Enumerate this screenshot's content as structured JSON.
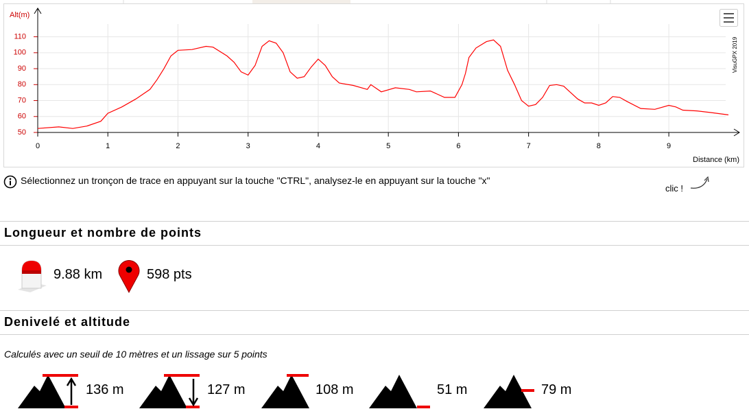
{
  "chart_data": {
    "type": "line",
    "y_label": "Alt(m)",
    "x_label": "Distance (km)",
    "credit": "VisuGPX 2019",
    "color": "#ff0000",
    "grid": true,
    "x": [
      0,
      0.3,
      0.5,
      0.7,
      0.9,
      1.0,
      1.2,
      1.4,
      1.6,
      1.7,
      1.8,
      1.9,
      2.0,
      2.2,
      2.4,
      2.5,
      2.7,
      2.8,
      2.9,
      3.0,
      3.1,
      3.2,
      3.3,
      3.4,
      3.5,
      3.6,
      3.7,
      3.8,
      3.9,
      4.0,
      4.1,
      4.2,
      4.3,
      4.5,
      4.7,
      4.75,
      4.9,
      5.1,
      5.3,
      5.4,
      5.6,
      5.8,
      5.95,
      6.05,
      6.1,
      6.15,
      6.25,
      6.4,
      6.5,
      6.6,
      6.7,
      6.8,
      6.9,
      7.0,
      7.1,
      7.2,
      7.3,
      7.4,
      7.5,
      7.6,
      7.7,
      7.8,
      7.9,
      8.0,
      8.1,
      8.2,
      8.3,
      8.4,
      8.6,
      8.8,
      9.0,
      9.1,
      9.2,
      9.4,
      9.6,
      9.85
    ],
    "values": [
      52.5,
      53.5,
      52.5,
      54,
      57,
      62,
      66,
      71,
      77,
      83,
      90,
      98,
      101.5,
      102,
      104,
      103.5,
      98,
      94,
      88,
      86,
      92,
      104,
      107.5,
      106,
      100,
      88,
      84,
      85,
      91,
      96,
      92,
      85,
      81,
      79.5,
      77,
      80,
      75.5,
      78,
      77,
      75.5,
      76,
      72,
      72,
      80,
      87,
      97,
      103,
      107,
      108,
      104,
      89,
      80,
      70,
      66.5,
      67.5,
      72,
      79.5,
      80,
      79,
      75,
      71,
      68.5,
      68.5,
      67,
      68.5,
      72.5,
      72,
      69.5,
      65,
      64.5,
      67,
      66,
      64,
      63.5,
      62.5,
      61
    ],
    "xlim": [
      0,
      9.85
    ],
    "xticks": [
      0,
      1,
      2,
      3,
      4,
      5,
      6,
      7,
      8,
      9
    ],
    "ylim": [
      50,
      118
    ],
    "yticks": [
      50,
      60,
      70,
      80,
      90,
      100,
      110
    ]
  },
  "info": "Sélectionnez un tronçon de trace en appuyant sur la touche \"CTRL\", analysez-le en appuyant sur la touche \"x\"",
  "hint": "clic !",
  "sections": [
    {
      "title": "Longueur et nombre de points",
      "stats": [
        "9.88 km",
        "598 pts"
      ]
    },
    {
      "title": "Denivelé et altitude",
      "note": "Calculés avec un seuil de 10 mètres et un lissage sur 5 points",
      "stats": [
        "136 m",
        "127 m",
        "108 m",
        "51 m",
        "79 m"
      ]
    }
  ]
}
